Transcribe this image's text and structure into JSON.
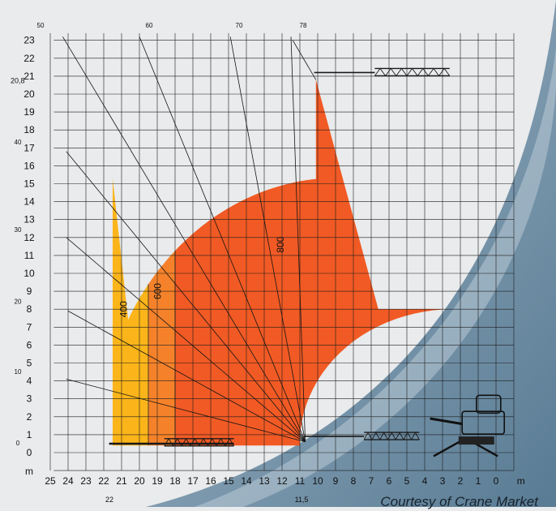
{
  "diagram": {
    "y_axis_ticks": [
      "0",
      "1",
      "2",
      "3",
      "4",
      "5",
      "6",
      "7",
      "8",
      "9",
      "10",
      "11",
      "12",
      "13",
      "14",
      "15",
      "16",
      "17",
      "18",
      "19",
      "20",
      "21",
      "22",
      "23"
    ],
    "x_axis_ticks": [
      "25",
      "24",
      "23",
      "22",
      "21",
      "20",
      "19",
      "18",
      "17",
      "16",
      "15",
      "14",
      "13",
      "12",
      "11",
      "10",
      "9",
      "8",
      "7",
      "6",
      "5",
      "4",
      "3",
      "2",
      "1",
      "0"
    ],
    "x_unit": "m",
    "y_unit": "m",
    "max_height_label": "20,8",
    "max_radius_label": "22",
    "min_radius_label": "11,5",
    "angle_labels": [
      "0",
      "10",
      "20",
      "30",
      "40",
      "50",
      "60",
      "70",
      "78"
    ],
    "zones": [
      {
        "label": "400",
        "color": "#fbb51a"
      },
      {
        "label": "600",
        "color": "#f5822a"
      },
      {
        "label": "800",
        "color": "#f15a24"
      }
    ],
    "credit": "Courtesy of Crane Market"
  }
}
